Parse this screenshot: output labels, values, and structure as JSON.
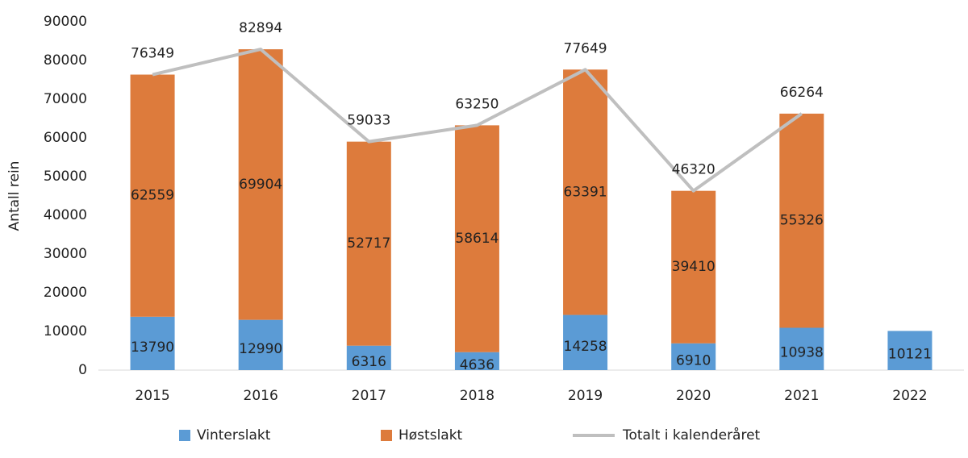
{
  "chart_data": {
    "type": "bar",
    "stacked": true,
    "y_axis_label": "Antall rein",
    "categories": [
      "2015",
      "2016",
      "2017",
      "2018",
      "2019",
      "2020",
      "2021",
      "2022"
    ],
    "series": [
      {
        "name": "Vinterslakt",
        "type": "bar",
        "color": "#5b9bd5",
        "values": [
          13790,
          12990,
          6316,
          4636,
          14258,
          6910,
          10938,
          10121
        ]
      },
      {
        "name": "Høstslakt",
        "type": "bar",
        "color": "#dd7b3c",
        "values": [
          62559,
          69904,
          52717,
          58614,
          63391,
          39410,
          55326,
          null
        ]
      },
      {
        "name": "Totalt i kalenderåret",
        "type": "line",
        "color": "#bfbfbf",
        "values": [
          76349,
          82894,
          59033,
          63250,
          77649,
          46320,
          66264,
          null
        ]
      }
    ],
    "ylim": [
      0,
      90000
    ],
    "yticks": [
      0,
      10000,
      20000,
      30000,
      40000,
      50000,
      60000,
      70000,
      80000,
      90000
    ],
    "grid": false,
    "legend": "bottom"
  }
}
